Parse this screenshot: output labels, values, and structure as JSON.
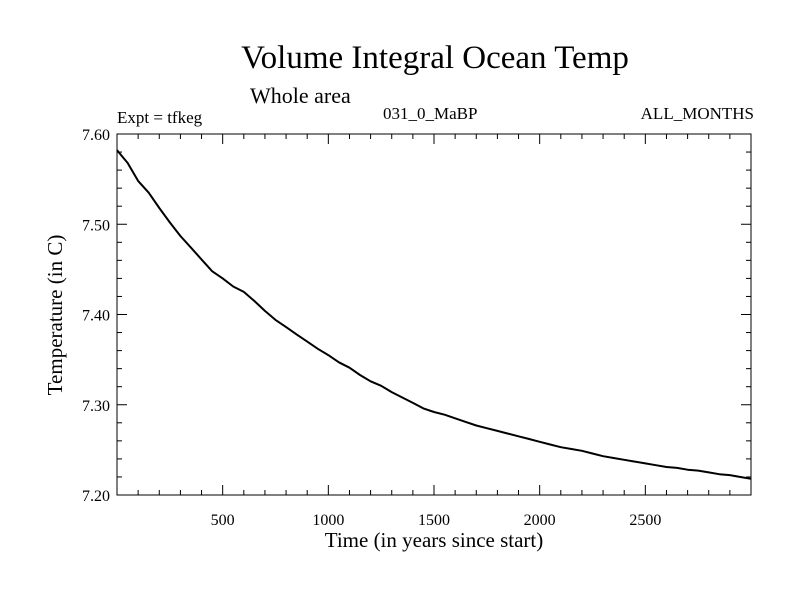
{
  "header": {
    "title": "Volume Integral Ocean Temp",
    "subtitle": "Whole area",
    "experiment": "Expt = tfkeg",
    "period": "031_0_MaBP",
    "months": "ALL_MONTHS"
  },
  "colors": {
    "line": "#000000",
    "frame": "#000000",
    "background": "#ffffff"
  },
  "chart_data": {
    "type": "line",
    "title": "Volume Integral Ocean Temp",
    "subtitle": "Whole area",
    "xlabel": "Time (in years since start)",
    "ylabel": "Temperature (in C)",
    "xlim": [
      0,
      3000
    ],
    "ylim": [
      7.2,
      7.6
    ],
    "xticks": [
      500,
      1000,
      1500,
      2000,
      2500
    ],
    "xtick_labels": [
      "500",
      "1000",
      "1500",
      "2000",
      "2500"
    ],
    "yticks": [
      7.2,
      7.3,
      7.4,
      7.5,
      7.6
    ],
    "ytick_labels": [
      "7.20",
      "7.30",
      "7.40",
      "7.50",
      "7.60"
    ],
    "grid": false,
    "series": [
      {
        "x": [
          0,
          50,
          100,
          150,
          200,
          250,
          300,
          350,
          400,
          450,
          500,
          550,
          600,
          650,
          700,
          750,
          800,
          850,
          900,
          950,
          1000,
          1050,
          1100,
          1150,
          1200,
          1250,
          1300,
          1350,
          1400,
          1450,
          1500,
          1550,
          1600,
          1650,
          1700,
          1750,
          1800,
          1850,
          1900,
          1950,
          2000,
          2050,
          2100,
          2150,
          2200,
          2250,
          2300,
          2350,
          2400,
          2450,
          2500,
          2550,
          2600,
          2650,
          2700,
          2750,
          2800,
          2850,
          2900,
          2950,
          3000
        ],
        "y": [
          7.582,
          7.568,
          7.548,
          7.535,
          7.518,
          7.502,
          7.487,
          7.474,
          7.461,
          7.448,
          7.44,
          7.431,
          7.425,
          7.415,
          7.404,
          7.394,
          7.386,
          7.378,
          7.37,
          7.362,
          7.355,
          7.347,
          7.341,
          7.333,
          7.326,
          7.321,
          7.314,
          7.308,
          7.302,
          7.296,
          7.292,
          7.289,
          7.285,
          7.281,
          7.277,
          7.274,
          7.271,
          7.268,
          7.265,
          7.262,
          7.259,
          7.256,
          7.253,
          7.251,
          7.249,
          7.246,
          7.243,
          7.241,
          7.239,
          7.237,
          7.235,
          7.233,
          7.231,
          7.23,
          7.228,
          7.227,
          7.225,
          7.223,
          7.222,
          7.22,
          7.218
        ]
      }
    ]
  }
}
